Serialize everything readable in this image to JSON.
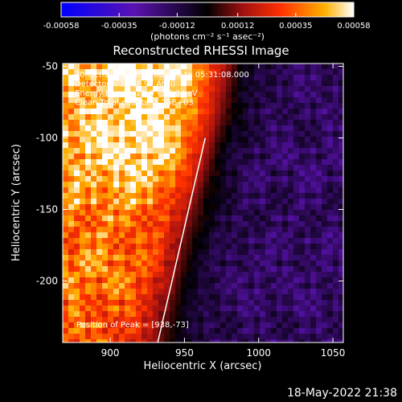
{
  "colorbar": {
    "ticks": [
      "-0.00058",
      "-0.00035",
      "-0.00012",
      "0.00012",
      "0.00035",
      "0.00058"
    ],
    "tick_values": [
      -0.00058,
      -0.00035,
      -0.00012,
      0.00012,
      0.00035,
      0.00058
    ],
    "unit_label": "(photons cm⁻² s⁻¹ asec⁻²)",
    "range": [
      -0.00058,
      0.00058
    ]
  },
  "chart_data": {
    "type": "heatmap",
    "title": "Reconstructed RHESSI Image",
    "xlabel": "Heliocentric X (arcsec)",
    "ylabel": "Heliocentric Y (arcsec)",
    "xlim": [
      868,
      1057
    ],
    "ylim": [
      -243,
      -48
    ],
    "x_ticks": [
      900,
      950,
      1000,
      1050
    ],
    "y_ticks": [
      -50,
      -100,
      -150,
      -200
    ],
    "limb_line": [
      [
        932,
        -243
      ],
      [
        964,
        -100
      ]
    ],
    "annotations": [
      "30-Oct-2014 05:25:08.000 to 05:31:08.000",
      "Detectors: 3F 6F 9F  Att 0",
      "Energy Range: 25.0 - 50.0 keV",
      "Clean    Total counts: 1.26E+03"
    ],
    "peak_label": "Position of Peak = [938,-73]",
    "peak": [
      938,
      -73
    ],
    "grid": false
  },
  "footer": {
    "timestamp": "18-May-2022 21:38"
  },
  "colors": {
    "limb": "#ffffff",
    "background": "#000000"
  }
}
